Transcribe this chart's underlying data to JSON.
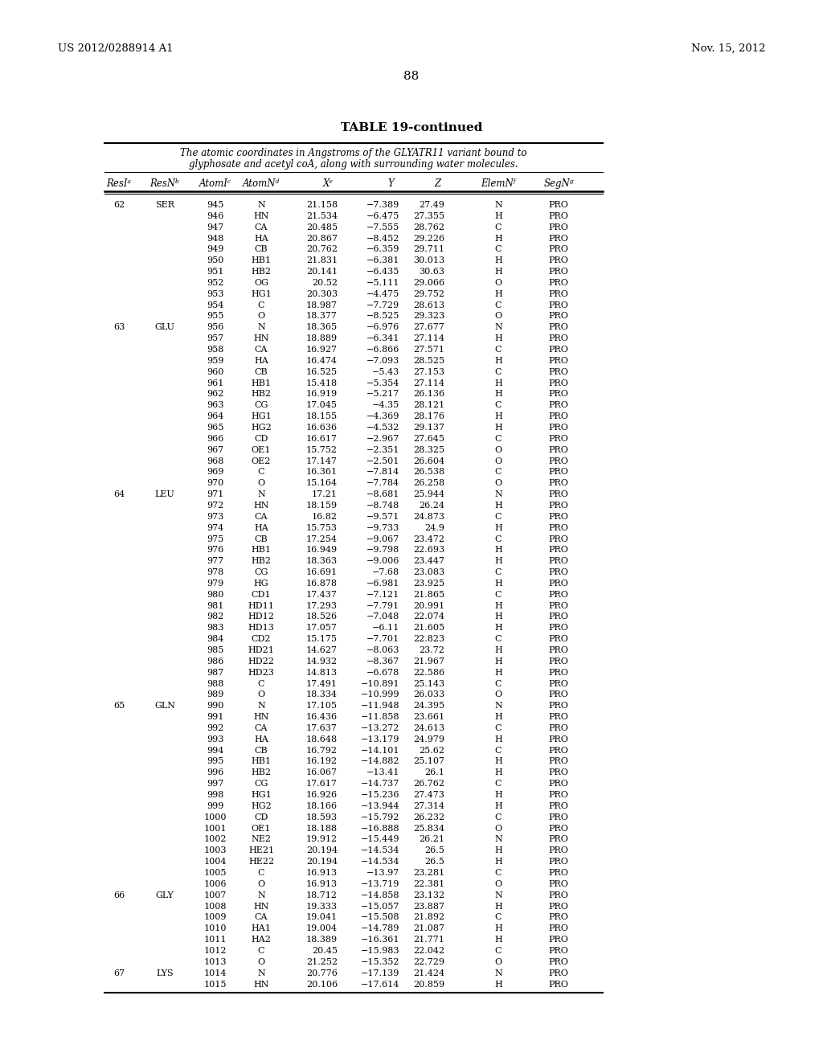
{
  "header_left": "US 2012/0288914 A1",
  "header_right": "Nov. 15, 2012",
  "page_number": "88",
  "table_title": "TABLE 19-continued",
  "table_subtitle_line1": "The atomic coordinates in Angstroms of the GLYATR11 variant bound to",
  "table_subtitle_line2": "glyphosate and acetyl coA, along with surrounding water molecules.",
  "col_headers": [
    "ResIᵃ",
    "ResNᵇ",
    "AtomIᶜ",
    "AtomNᵈ",
    "Xᵉ",
    "Y",
    "Z",
    "ElemNᶠ",
    "SegNᵍ"
  ],
  "rows": [
    [
      "62",
      "SER",
      "945",
      "N",
      "21.158",
      "−7.389",
      "27.49",
      "N",
      "PRO"
    ],
    [
      "",
      "",
      "946",
      "HN",
      "21.534",
      "−6.475",
      "27.355",
      "H",
      "PRO"
    ],
    [
      "",
      "",
      "947",
      "CA",
      "20.485",
      "−7.555",
      "28.762",
      "C",
      "PRO"
    ],
    [
      "",
      "",
      "948",
      "HA",
      "20.867",
      "−8.452",
      "29.226",
      "H",
      "PRO"
    ],
    [
      "",
      "",
      "949",
      "CB",
      "20.762",
      "−6.359",
      "29.711",
      "C",
      "PRO"
    ],
    [
      "",
      "",
      "950",
      "HB1",
      "21.831",
      "−6.381",
      "30.013",
      "H",
      "PRO"
    ],
    [
      "",
      "",
      "951",
      "HB2",
      "20.141",
      "−6.435",
      "30.63",
      "H",
      "PRO"
    ],
    [
      "",
      "",
      "952",
      "OG",
      "20.52",
      "−5.111",
      "29.066",
      "O",
      "PRO"
    ],
    [
      "",
      "",
      "953",
      "HG1",
      "20.303",
      "−4.475",
      "29.752",
      "H",
      "PRO"
    ],
    [
      "",
      "",
      "954",
      "C",
      "18.987",
      "−7.729",
      "28.613",
      "C",
      "PRO"
    ],
    [
      "",
      "",
      "955",
      "O",
      "18.377",
      "−8.525",
      "29.323",
      "O",
      "PRO"
    ],
    [
      "63",
      "GLU",
      "956",
      "N",
      "18.365",
      "−6.976",
      "27.677",
      "N",
      "PRO"
    ],
    [
      "",
      "",
      "957",
      "HN",
      "18.889",
      "−6.341",
      "27.114",
      "H",
      "PRO"
    ],
    [
      "",
      "",
      "958",
      "CA",
      "16.927",
      "−6.866",
      "27.571",
      "C",
      "PRO"
    ],
    [
      "",
      "",
      "959",
      "HA",
      "16.474",
      "−7.093",
      "28.525",
      "H",
      "PRO"
    ],
    [
      "",
      "",
      "960",
      "CB",
      "16.525",
      "−5.43",
      "27.153",
      "C",
      "PRO"
    ],
    [
      "",
      "",
      "961",
      "HB1",
      "15.418",
      "−5.354",
      "27.114",
      "H",
      "PRO"
    ],
    [
      "",
      "",
      "962",
      "HB2",
      "16.919",
      "−5.217",
      "26.136",
      "H",
      "PRO"
    ],
    [
      "",
      "",
      "963",
      "CG",
      "17.045",
      "−4.35",
      "28.121",
      "C",
      "PRO"
    ],
    [
      "",
      "",
      "964",
      "HG1",
      "18.155",
      "−4.369",
      "28.176",
      "H",
      "PRO"
    ],
    [
      "",
      "",
      "965",
      "HG2",
      "16.636",
      "−4.532",
      "29.137",
      "H",
      "PRO"
    ],
    [
      "",
      "",
      "966",
      "CD",
      "16.617",
      "−2.967",
      "27.645",
      "C",
      "PRO"
    ],
    [
      "",
      "",
      "967",
      "OE1",
      "15.752",
      "−2.351",
      "28.325",
      "O",
      "PRO"
    ],
    [
      "",
      "",
      "968",
      "OE2",
      "17.147",
      "−2.501",
      "26.604",
      "O",
      "PRO"
    ],
    [
      "",
      "",
      "969",
      "C",
      "16.361",
      "−7.814",
      "26.538",
      "C",
      "PRO"
    ],
    [
      "",
      "",
      "970",
      "O",
      "15.164",
      "−7.784",
      "26.258",
      "O",
      "PRO"
    ],
    [
      "64",
      "LEU",
      "971",
      "N",
      "17.21",
      "−8.681",
      "25.944",
      "N",
      "PRO"
    ],
    [
      "",
      "",
      "972",
      "HN",
      "18.159",
      "−8.748",
      "26.24",
      "H",
      "PRO"
    ],
    [
      "",
      "",
      "973",
      "CA",
      "16.82",
      "−9.571",
      "24.873",
      "C",
      "PRO"
    ],
    [
      "",
      "",
      "974",
      "HA",
      "15.753",
      "−9.733",
      "24.9",
      "H",
      "PRO"
    ],
    [
      "",
      "",
      "975",
      "CB",
      "17.254",
      "−9.067",
      "23.472",
      "C",
      "PRO"
    ],
    [
      "",
      "",
      "976",
      "HB1",
      "16.949",
      "−9.798",
      "22.693",
      "H",
      "PRO"
    ],
    [
      "",
      "",
      "977",
      "HB2",
      "18.363",
      "−9.006",
      "23.447",
      "H",
      "PRO"
    ],
    [
      "",
      "",
      "978",
      "CG",
      "16.691",
      "−7.68",
      "23.083",
      "C",
      "PRO"
    ],
    [
      "",
      "",
      "979",
      "HG",
      "16.878",
      "−6.981",
      "23.925",
      "H",
      "PRO"
    ],
    [
      "",
      "",
      "980",
      "CD1",
      "17.437",
      "−7.121",
      "21.865",
      "C",
      "PRO"
    ],
    [
      "",
      "",
      "981",
      "HD11",
      "17.293",
      "−7.791",
      "20.991",
      "H",
      "PRO"
    ],
    [
      "",
      "",
      "982",
      "HD12",
      "18.526",
      "−7.048",
      "22.074",
      "H",
      "PRO"
    ],
    [
      "",
      "",
      "983",
      "HD13",
      "17.057",
      "−6.11",
      "21.605",
      "H",
      "PRO"
    ],
    [
      "",
      "",
      "984",
      "CD2",
      "15.175",
      "−7.701",
      "22.823",
      "C",
      "PRO"
    ],
    [
      "",
      "",
      "985",
      "HD21",
      "14.627",
      "−8.063",
      "23.72",
      "H",
      "PRO"
    ],
    [
      "",
      "",
      "986",
      "HD22",
      "14.932",
      "−8.367",
      "21.967",
      "H",
      "PRO"
    ],
    [
      "",
      "",
      "987",
      "HD23",
      "14.813",
      "−6.678",
      "22.586",
      "H",
      "PRO"
    ],
    [
      "",
      "",
      "988",
      "C",
      "17.491",
      "−10.891",
      "25.143",
      "C",
      "PRO"
    ],
    [
      "",
      "",
      "989",
      "O",
      "18.334",
      "−10.999",
      "26.033",
      "O",
      "PRO"
    ],
    [
      "65",
      "GLN",
      "990",
      "N",
      "17.105",
      "−11.948",
      "24.395",
      "N",
      "PRO"
    ],
    [
      "",
      "",
      "991",
      "HN",
      "16.436",
      "−11.858",
      "23.661",
      "H",
      "PRO"
    ],
    [
      "",
      "",
      "992",
      "CA",
      "17.637",
      "−13.272",
      "24.613",
      "C",
      "PRO"
    ],
    [
      "",
      "",
      "993",
      "HA",
      "18.648",
      "−13.179",
      "24.979",
      "H",
      "PRO"
    ],
    [
      "",
      "",
      "994",
      "CB",
      "16.792",
      "−14.101",
      "25.62",
      "C",
      "PRO"
    ],
    [
      "",
      "",
      "995",
      "HB1",
      "16.192",
      "−14.882",
      "25.107",
      "H",
      "PRO"
    ],
    [
      "",
      "",
      "996",
      "HB2",
      "16.067",
      "−13.41",
      "26.1",
      "H",
      "PRO"
    ],
    [
      "",
      "",
      "997",
      "CG",
      "17.617",
      "−14.737",
      "26.762",
      "C",
      "PRO"
    ],
    [
      "",
      "",
      "998",
      "HG1",
      "16.926",
      "−15.236",
      "27.473",
      "H",
      "PRO"
    ],
    [
      "",
      "",
      "999",
      "HG2",
      "18.166",
      "−13.944",
      "27.314",
      "H",
      "PRO"
    ],
    [
      "",
      "",
      "1000",
      "CD",
      "18.593",
      "−15.792",
      "26.232",
      "C",
      "PRO"
    ],
    [
      "",
      "",
      "1001",
      "OE1",
      "18.188",
      "−16.888",
      "25.834",
      "O",
      "PRO"
    ],
    [
      "",
      "",
      "1002",
      "NE2",
      "19.912",
      "−15.449",
      "26.21",
      "N",
      "PRO"
    ],
    [
      "",
      "",
      "1003",
      "HE21",
      "20.194",
      "−14.534",
      "26.5",
      "H",
      "PRO"
    ],
    [
      "",
      "",
      "1004",
      "HE22",
      "20.194",
      "−14.534",
      "26.5",
      "H",
      "PRO"
    ],
    [
      "",
      "",
      "1005",
      "C",
      "16.913",
      "−13.97",
      "23.281",
      "C",
      "PRO"
    ],
    [
      "",
      "",
      "1006",
      "O",
      "16.913",
      "−13.719",
      "22.381",
      "O",
      "PRO"
    ],
    [
      "66",
      "GLY",
      "1007",
      "N",
      "18.712",
      "−14.858",
      "23.132",
      "N",
      "PRO"
    ],
    [
      "",
      "",
      "1008",
      "HN",
      "19.333",
      "−15.057",
      "23.887",
      "H",
      "PRO"
    ],
    [
      "",
      "",
      "1009",
      "CA",
      "19.041",
      "−15.508",
      "21.892",
      "C",
      "PRO"
    ],
    [
      "",
      "",
      "1010",
      "HA1",
      "19.004",
      "−14.789",
      "21.087",
      "H",
      "PRO"
    ],
    [
      "",
      "",
      "1011",
      "HA2",
      "18.389",
      "−16.361",
      "21.771",
      "H",
      "PRO"
    ],
    [
      "",
      "",
      "1012",
      "C",
      "20.45",
      "−15.983",
      "22.042",
      "C",
      "PRO"
    ],
    [
      "",
      "",
      "1013",
      "O",
      "21.252",
      "−15.352",
      "22.729",
      "O",
      "PRO"
    ],
    [
      "67",
      "LYS",
      "1014",
      "N",
      "20.776",
      "−17.139",
      "21.424",
      "N",
      "PRO"
    ],
    [
      "",
      "",
      "1015",
      "HN",
      "20.106",
      "−17.614",
      "20.859",
      "H",
      "PRO"
    ]
  ]
}
